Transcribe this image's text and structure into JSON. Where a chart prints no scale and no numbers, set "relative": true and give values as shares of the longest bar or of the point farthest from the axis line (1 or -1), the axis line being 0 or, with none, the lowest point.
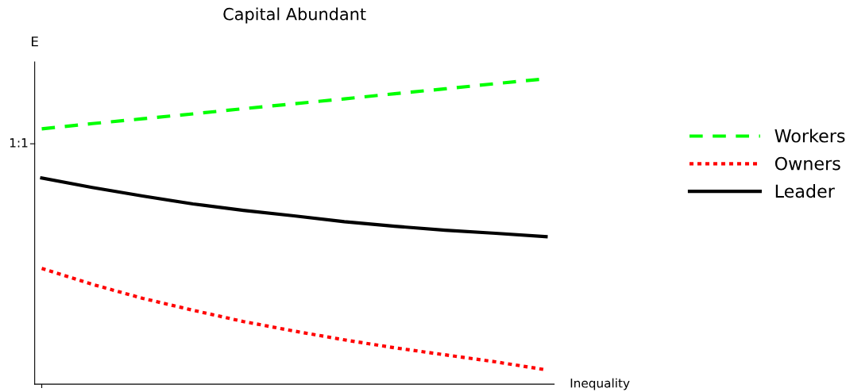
{
  "chart_data": {
    "type": "line",
    "title": "Capital Abundant",
    "xlabel": "Inequality",
    "ylabel": "E",
    "relative": true,
    "categories": [
      null,
      null,
      null,
      null,
      null,
      null,
      null,
      null,
      null,
      null,
      null
    ],
    "annotations": [
      "1:1"
    ],
    "legend": "right",
    "series": [
      {
        "name": "Workers",
        "color": "#00ff00",
        "line_style": "dashed",
        "values": [
          0.836,
          0.853,
          0.869,
          0.885,
          0.902,
          0.918,
          0.934,
          0.951,
          0.967,
          0.984,
          1.0
        ]
      },
      {
        "name": "Owners",
        "color": "#ff0000",
        "line_style": "dotted",
        "values": [
          0.379,
          0.327,
          0.281,
          0.242,
          0.205,
          0.174,
          0.145,
          0.119,
          0.096,
          0.073,
          0.047
        ]
      },
      {
        "name": "Leader",
        "color": "#000000",
        "line_style": "solid",
        "values": [
          0.675,
          0.644,
          0.616,
          0.59,
          0.569,
          0.551,
          0.532,
          0.517,
          0.504,
          0.494,
          0.483
        ]
      }
    ]
  }
}
